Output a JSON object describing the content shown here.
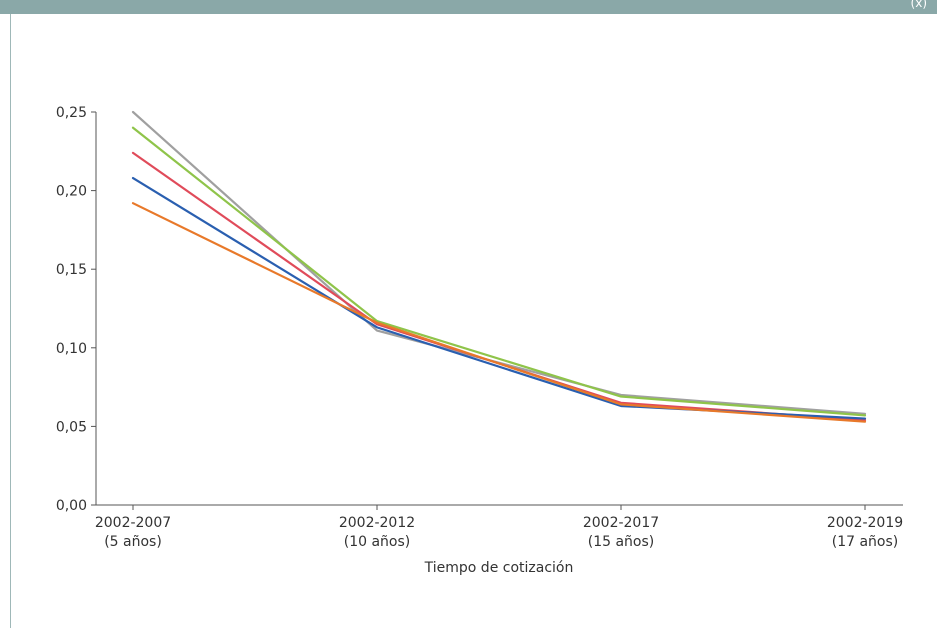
{
  "header": {
    "corner_label": "(x)"
  },
  "colors": {
    "bar": "#8aa8a8",
    "axis": "#555555"
  },
  "chart_data": {
    "type": "line",
    "x": [
      "2002-2007",
      "2002-2012",
      "2002-2017",
      "2002-2019"
    ],
    "x_sublabels": [
      "(5 años)",
      "(10 años)",
      "(15 años)",
      "(17 años)"
    ],
    "xlabel": "Tiempo de cotización",
    "ylabel": "",
    "ylim": [
      0,
      0.25
    ],
    "yticks": [
      "0,00",
      "0,05",
      "0,10",
      "0,15",
      "0,20",
      "0,25"
    ],
    "grid": false,
    "series": [
      {
        "color": "#e8792a",
        "values": [
          0.192,
          0.116,
          0.064,
          0.053
        ]
      },
      {
        "color": "#2a5fb0",
        "values": [
          0.208,
          0.113,
          0.063,
          0.055
        ]
      },
      {
        "color": "#e04b5a",
        "values": [
          0.224,
          0.115,
          0.065,
          0.054
        ]
      },
      {
        "color": "#8fc44a",
        "values": [
          0.24,
          0.117,
          0.069,
          0.057
        ]
      },
      {
        "color": "#a0a0a0",
        "values": [
          0.25,
          0.111,
          0.07,
          0.058
        ]
      }
    ]
  }
}
